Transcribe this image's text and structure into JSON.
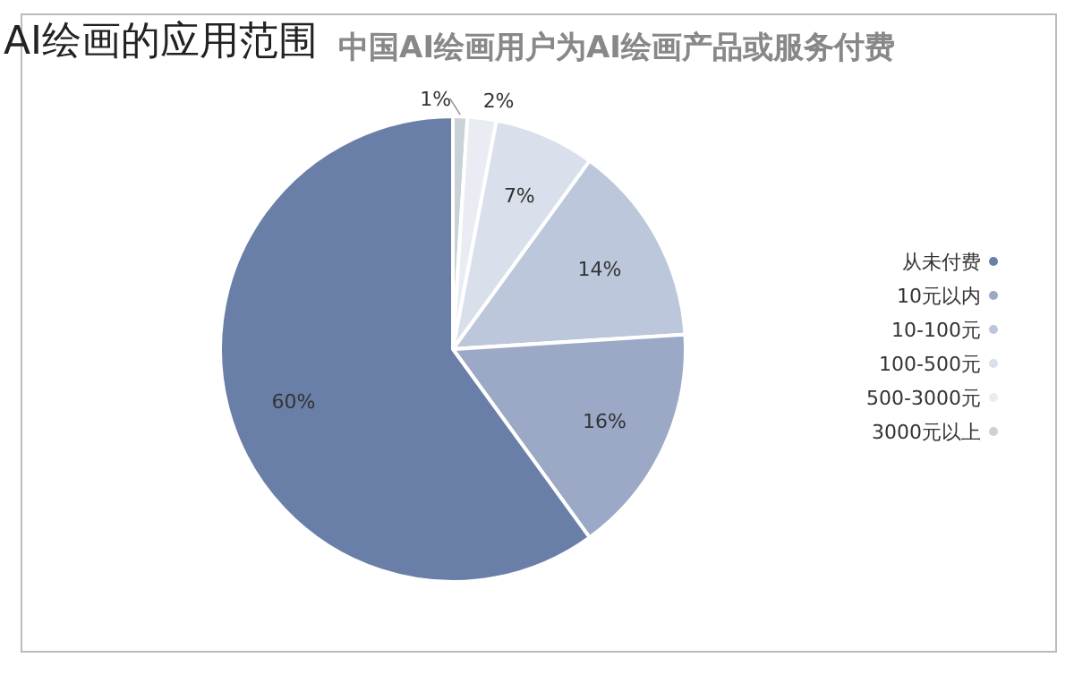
{
  "chart_data": {
    "type": "pie",
    "title": "AI绘画的应用范围",
    "subtitle": "中国AI绘画用户为AI绘画产品或服务付费",
    "categories": [
      "从未付费",
      "10元以内",
      "10-100元",
      "100-500元",
      "500-3000元",
      "3000元以上"
    ],
    "values": [
      60,
      16,
      14,
      7,
      2,
      1
    ],
    "colors": [
      "#6a7fa8",
      "#9ba9c7",
      "#bdc7db",
      "#d9dfeb",
      "#e9edf3",
      "#c9d2d6"
    ],
    "value_labels": [
      "60%",
      "16%",
      "14%",
      "7%",
      "2%",
      "1%"
    ],
    "legend": "right"
  }
}
